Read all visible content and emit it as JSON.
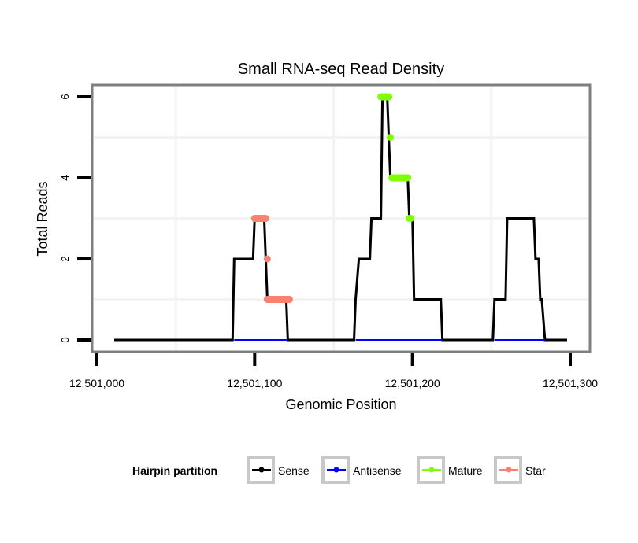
{
  "chart_data": {
    "type": "line",
    "title": "Small RNA-seq Read Density",
    "xlabel": "Genomic Position",
    "ylabel": "Total Reads",
    "xlim": [
      12500997,
      12501313
    ],
    "ylim": [
      -0.3,
      6.3
    ],
    "x_ticks": [
      12501000,
      12501100,
      12501200,
      12501300
    ],
    "x_tick_labels": [
      "12,501,000",
      "12,501,100",
      "12,501,200",
      "12,501,300"
    ],
    "y_ticks": [
      0,
      2,
      4,
      6
    ],
    "y_tick_labels": [
      "0",
      "2",
      "4",
      "6"
    ],
    "x_minor_grid": [
      12501050,
      12501150,
      12501250
    ],
    "y_minor_grid": [
      1,
      3,
      5
    ],
    "grid": true,
    "legend": {
      "title": "Hairpin partition",
      "position": "bottom",
      "entries": [
        {
          "name": "Sense",
          "color": "#000000"
        },
        {
          "name": "Antisense",
          "color": "#0000ff"
        },
        {
          "name": "Mature",
          "color": "#7fff00"
        },
        {
          "name": "Star",
          "color": "#fa8072"
        }
      ]
    },
    "series": [
      {
        "name": "Sense",
        "color": "#000000",
        "points": [
          [
            12501011,
            0
          ],
          [
            12501086,
            0
          ],
          [
            12501087,
            2
          ],
          [
            12501099,
            2
          ],
          [
            12501100,
            3
          ],
          [
            12501106,
            3
          ],
          [
            12501107,
            2
          ],
          [
            12501108,
            1
          ],
          [
            12501120,
            1
          ],
          [
            12501121,
            0
          ],
          [
            12501163,
            0
          ],
          [
            12501164,
            1
          ],
          [
            12501166,
            2
          ],
          [
            12501173,
            2
          ],
          [
            12501174,
            3
          ],
          [
            12501180,
            3
          ],
          [
            12501181,
            6
          ],
          [
            12501184,
            6
          ],
          [
            12501185,
            5
          ],
          [
            12501186,
            4
          ],
          [
            12501197,
            4
          ],
          [
            12501198,
            3
          ],
          [
            12501200,
            3
          ],
          [
            12501201,
            1
          ],
          [
            12501218,
            1
          ],
          [
            12501219,
            0
          ],
          [
            12501251,
            0
          ],
          [
            12501252,
            1
          ],
          [
            12501259,
            1
          ],
          [
            12501260,
            3
          ],
          [
            12501277,
            3
          ],
          [
            12501278,
            2
          ],
          [
            12501280,
            2
          ],
          [
            12501281,
            1
          ],
          [
            12501282,
            1
          ],
          [
            12501284,
            0
          ],
          [
            12501298,
            0
          ]
        ]
      },
      {
        "name": "Antisense",
        "color": "#0000ff",
        "segments": [
          [
            [
              12501087,
              0
            ],
            [
              12501121,
              0
            ]
          ],
          [
            [
              12501164,
              0
            ],
            [
              12501219,
              0
            ]
          ],
          [
            [
              12501252,
              0
            ],
            [
              12501284,
              0
            ]
          ]
        ]
      },
      {
        "name": "Mature",
        "color": "#7fff00",
        "segments": [
          [
            [
              12501180,
              6
            ],
            [
              12501185,
              6
            ]
          ],
          [
            [
              12501186,
              5
            ],
            [
              12501186,
              5
            ]
          ],
          [
            [
              12501187,
              4
            ],
            [
              12501197,
              4
            ]
          ],
          [
            [
              12501198,
              3
            ],
            [
              12501199,
              3
            ]
          ]
        ]
      },
      {
        "name": "Star",
        "color": "#fa8072",
        "segments": [
          [
            [
              12501100,
              3
            ],
            [
              12501107,
              3
            ]
          ],
          [
            [
              12501108,
              2
            ],
            [
              12501108,
              2
            ]
          ],
          [
            [
              12501108,
              1
            ],
            [
              12501122,
              1
            ]
          ]
        ]
      }
    ]
  }
}
